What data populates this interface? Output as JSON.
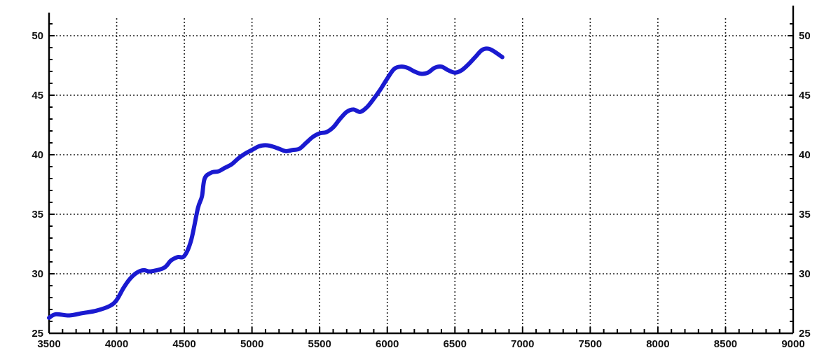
{
  "chart_data": {
    "type": "line",
    "title": "",
    "xlabel": "",
    "ylabel": "",
    "xlim": [
      3500,
      9000
    ],
    "ylim": [
      25,
      51
    ],
    "x_ticks": [
      3500,
      4000,
      4500,
      5000,
      5500,
      6000,
      6500,
      7000,
      7500,
      8000,
      8500,
      9000
    ],
    "x_tick_labels": [
      "3500",
      "4000",
      "4500",
      "5000",
      "5500",
      "6000",
      "6500",
      "7000",
      "7500",
      "8000",
      "8500",
      "9000"
    ],
    "y_ticks": [
      25,
      30,
      35,
      40,
      45,
      50
    ],
    "y_tick_labels": [
      "25",
      "30",
      "35",
      "40",
      "45",
      "50"
    ],
    "y_ticks_right": [
      25,
      30,
      35,
      40,
      45,
      50
    ],
    "y_tick_labels_right": [
      "25",
      "30",
      "35",
      "40",
      "45",
      "50"
    ],
    "grid": true,
    "line_color": "#1a1ad0",
    "series": [
      {
        "x": [
          3500,
          3550,
          3650,
          3750,
          3850,
          3950,
          4000,
          4050,
          4100,
          4150,
          4200,
          4250,
          4350,
          4400,
          4450,
          4500,
          4550,
          4600,
          4630,
          4650,
          4700,
          4750,
          4800,
          4850,
          4900,
          4950,
          5000,
          5050,
          5100,
          5150,
          5200,
          5250,
          5300,
          5350,
          5400,
          5450,
          5500,
          5550,
          5600,
          5650,
          5700,
          5750,
          5800,
          5850,
          5900,
          5950,
          6000,
          6050,
          6100,
          6150,
          6200,
          6250,
          6300,
          6350,
          6400,
          6450,
          6500,
          6550,
          6600,
          6650,
          6700,
          6750,
          6800,
          6850
        ],
        "y": [
          26.3,
          26.6,
          26.5,
          26.7,
          26.9,
          27.3,
          27.8,
          28.8,
          29.6,
          30.1,
          30.3,
          30.2,
          30.5,
          31.1,
          31.4,
          31.5,
          32.8,
          35.5,
          36.5,
          38.0,
          38.5,
          38.6,
          38.9,
          39.2,
          39.7,
          40.1,
          40.4,
          40.7,
          40.8,
          40.7,
          40.5,
          40.3,
          40.4,
          40.5,
          41.0,
          41.5,
          41.8,
          41.9,
          42.3,
          43.0,
          43.6,
          43.8,
          43.6,
          44.0,
          44.7,
          45.5,
          46.4,
          47.2,
          47.4,
          47.3,
          47.0,
          46.8,
          46.9,
          47.3,
          47.4,
          47.1,
          46.9,
          47.1,
          47.6,
          48.2,
          48.8,
          48.9,
          48.6,
          48.2
        ]
      }
    ]
  }
}
